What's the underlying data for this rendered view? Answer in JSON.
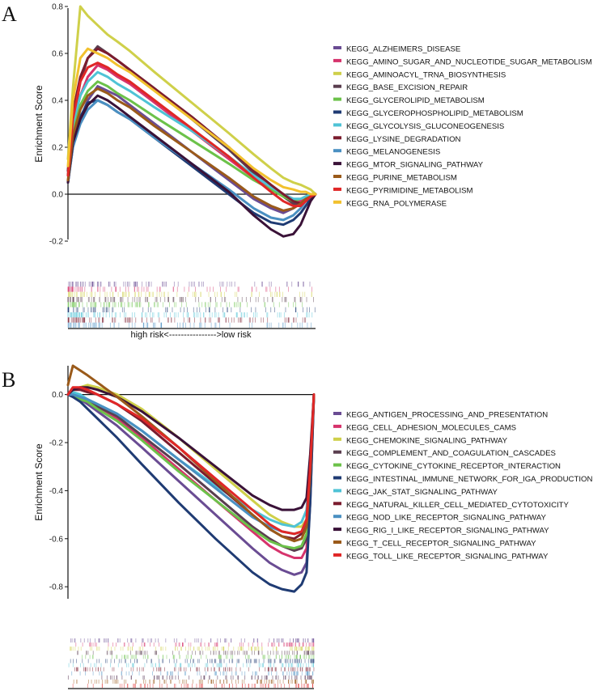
{
  "chart_data": [
    {
      "type": "line",
      "panel_label": "A",
      "ylabel": "Enrichment Score",
      "ylim": [
        -0.2,
        0.8
      ],
      "yticks": [
        -0.2,
        0.0,
        0.2,
        0.4,
        0.6,
        0.8
      ],
      "yticklabels": [
        "-0.2",
        "0.0",
        "0.2",
        "0.4",
        "0.6",
        "0.8"
      ],
      "x": [
        0,
        2,
        5,
        8,
        12,
        16,
        20,
        25,
        35,
        50,
        65,
        75,
        82,
        87,
        91,
        94,
        96,
        98,
        100
      ],
      "xlabel": "high risk<---------------->low risk",
      "legend_position": "right",
      "series": [
        {
          "name": "KEGG_ALZHEIMERS_DISEASE",
          "color": "#6a4c93",
          "values": [
            0.05,
            0.2,
            0.32,
            0.4,
            0.46,
            0.44,
            0.42,
            0.38,
            0.3,
            0.18,
            0.06,
            -0.02,
            -0.06,
            -0.08,
            -0.06,
            -0.04,
            -0.02,
            -0.01,
            0.0
          ]
        },
        {
          "name": "KEGG_AMINO_SUGAR_AND_NUCLEOTIDE_SUGAR_METABOLISM",
          "color": "#d6336c",
          "values": [
            0.1,
            0.3,
            0.42,
            0.5,
            0.55,
            0.53,
            0.5,
            0.47,
            0.39,
            0.27,
            0.15,
            0.07,
            0.02,
            0.0,
            -0.02,
            -0.03,
            -0.02,
            -0.01,
            0.0
          ]
        },
        {
          "name": "KEGG_AMINOACYL_TRNA_BIOSYNTHESIS",
          "color": "#cfd04a",
          "values": [
            0.15,
            0.45,
            0.8,
            0.76,
            0.72,
            0.68,
            0.65,
            0.61,
            0.52,
            0.39,
            0.26,
            0.17,
            0.11,
            0.07,
            0.05,
            0.04,
            0.03,
            0.02,
            0.0
          ]
        },
        {
          "name": "KEGG_BASE_EXCISION_REPAIR",
          "color": "#5a3e4f",
          "values": [
            0.08,
            0.3,
            0.48,
            0.58,
            0.63,
            0.6,
            0.57,
            0.53,
            0.45,
            0.32,
            0.19,
            0.09,
            0.03,
            -0.01,
            -0.04,
            -0.05,
            -0.03,
            -0.02,
            0.0
          ]
        },
        {
          "name": "KEGG_GLYCEROLIPID_METABOLISM",
          "color": "#6cc24a",
          "values": [
            0.1,
            0.28,
            0.38,
            0.44,
            0.48,
            0.46,
            0.43,
            0.4,
            0.33,
            0.23,
            0.13,
            0.06,
            0.02,
            -0.01,
            -0.03,
            -0.02,
            -0.01,
            0.0,
            0.0
          ]
        },
        {
          "name": "KEGG_GLYCEROPHOSPHOLIPID_METABOLISM",
          "color": "#1f3b73",
          "values": [
            0.05,
            0.22,
            0.33,
            0.39,
            0.4,
            0.38,
            0.35,
            0.32,
            0.24,
            0.12,
            0.0,
            -0.08,
            -0.12,
            -0.13,
            -0.11,
            -0.08,
            -0.05,
            -0.02,
            0.0
          ]
        },
        {
          "name": "KEGG_GLYCOLYSIS_GLUCONEOGENESIS",
          "color": "#4fc3d6",
          "values": [
            0.1,
            0.3,
            0.42,
            0.48,
            0.52,
            0.5,
            0.47,
            0.44,
            0.37,
            0.27,
            0.16,
            0.08,
            0.03,
            0.0,
            -0.02,
            -0.02,
            -0.01,
            0.0,
            0.0
          ]
        },
        {
          "name": "KEGG_LYSINE_DEGRADATION",
          "color": "#7b1c2e",
          "values": [
            0.1,
            0.35,
            0.5,
            0.58,
            0.62,
            0.6,
            0.57,
            0.53,
            0.45,
            0.33,
            0.2,
            0.1,
            0.04,
            0.0,
            -0.03,
            -0.04,
            -0.03,
            -0.01,
            0.0
          ]
        },
        {
          "name": "KEGG_MELANOGENESIS",
          "color": "#4a90c2",
          "values": [
            0.05,
            0.2,
            0.3,
            0.36,
            0.4,
            0.38,
            0.35,
            0.32,
            0.24,
            0.13,
            0.02,
            -0.06,
            -0.1,
            -0.11,
            -0.09,
            -0.06,
            -0.03,
            -0.01,
            0.0
          ]
        },
        {
          "name": "KEGG_MTOR_SIGNALING_PATHWAY",
          "color": "#3a1238",
          "values": [
            0.05,
            0.22,
            0.32,
            0.38,
            0.42,
            0.4,
            0.37,
            0.33,
            0.25,
            0.13,
            0.01,
            -0.09,
            -0.15,
            -0.18,
            -0.17,
            -0.13,
            -0.08,
            -0.03,
            0.0
          ]
        },
        {
          "name": "KEGG_PURINE_METABOLISM",
          "color": "#9a5a1a",
          "values": [
            0.06,
            0.25,
            0.36,
            0.42,
            0.45,
            0.43,
            0.4,
            0.37,
            0.29,
            0.18,
            0.07,
            -0.01,
            -0.05,
            -0.07,
            -0.06,
            -0.04,
            -0.02,
            -0.01,
            0.0
          ]
        },
        {
          "name": "KEGG_PYRIMIDINE_METABOLISM",
          "color": "#e02727",
          "values": [
            0.08,
            0.32,
            0.48,
            0.54,
            0.56,
            0.54,
            0.51,
            0.48,
            0.4,
            0.28,
            0.16,
            0.07,
            0.01,
            -0.03,
            -0.05,
            -0.05,
            -0.03,
            -0.01,
            0.0
          ]
        },
        {
          "name": "KEGG_RNA_POLYMERASE",
          "color": "#f2c12e",
          "values": [
            0.12,
            0.4,
            0.58,
            0.62,
            0.6,
            0.58,
            0.55,
            0.52,
            0.44,
            0.32,
            0.2,
            0.11,
            0.06,
            0.03,
            0.02,
            0.01,
            0.01,
            0.0,
            0.0
          ]
        }
      ]
    },
    {
      "type": "line",
      "panel_label": "B",
      "ylabel": "Enrichment Score",
      "ylim": [
        -0.85,
        0.12
      ],
      "yticks": [
        -0.8,
        -0.6,
        -0.4,
        -0.2,
        0.0
      ],
      "yticklabels": [
        "-0.8",
        "-0.6",
        "-0.4",
        "-0.2",
        "0.0"
      ],
      "x": [
        0,
        2,
        5,
        8,
        12,
        20,
        30,
        45,
        60,
        75,
        82,
        87,
        92,
        95,
        97,
        98.5,
        100
      ],
      "xlabel": "",
      "legend_position": "right",
      "series": [
        {
          "name": "KEGG_ANTIGEN_PROCESSING_AND_PRESENTATION",
          "color": "#6a4c93",
          "values": [
            0.0,
            0.0,
            -0.02,
            -0.04,
            -0.07,
            -0.13,
            -0.22,
            -0.36,
            -0.5,
            -0.64,
            -0.7,
            -0.73,
            -0.75,
            -0.74,
            -0.7,
            -0.45,
            0.0
          ]
        },
        {
          "name": "KEGG_CELL_ADHESION_MOLECULES_CAMS",
          "color": "#d6336c",
          "values": [
            0.0,
            0.01,
            -0.01,
            -0.03,
            -0.05,
            -0.1,
            -0.18,
            -0.31,
            -0.44,
            -0.57,
            -0.63,
            -0.66,
            -0.68,
            -0.68,
            -0.64,
            -0.4,
            0.0
          ]
        },
        {
          "name": "KEGG_CHEMOKINE_SIGNALING_PATHWAY",
          "color": "#cfd04a",
          "values": [
            0.0,
            0.02,
            0.03,
            0.04,
            0.03,
            0.0,
            -0.06,
            -0.18,
            -0.31,
            -0.44,
            -0.5,
            -0.53,
            -0.55,
            -0.55,
            -0.52,
            -0.32,
            0.0
          ]
        },
        {
          "name": "KEGG_COMPLEMENT_AND_COAGULATION_CASCADES",
          "color": "#5a3e4f",
          "values": [
            0.0,
            0.0,
            -0.01,
            -0.03,
            -0.05,
            -0.09,
            -0.17,
            -0.29,
            -0.42,
            -0.55,
            -0.6,
            -0.63,
            -0.65,
            -0.64,
            -0.6,
            -0.38,
            0.0
          ]
        },
        {
          "name": "KEGG_CYTOKINE_CYTOKINE_RECEPTOR_INTERACTION",
          "color": "#6cc24a",
          "values": [
            0.0,
            0.0,
            -0.02,
            -0.03,
            -0.06,
            -0.11,
            -0.19,
            -0.32,
            -0.44,
            -0.56,
            -0.61,
            -0.63,
            -0.64,
            -0.63,
            -0.58,
            -0.35,
            0.0
          ]
        },
        {
          "name": "KEGG_INTESTINAL_IMMUNE_NETWORK_FOR_IGA_PRODUCTION",
          "color": "#1f3b73",
          "values": [
            0.0,
            -0.01,
            -0.03,
            -0.06,
            -0.1,
            -0.18,
            -0.29,
            -0.45,
            -0.6,
            -0.74,
            -0.79,
            -0.81,
            -0.82,
            -0.79,
            -0.74,
            -0.45,
            0.0
          ]
        },
        {
          "name": "KEGG_JAK_STAT_SIGNALING_PATHWAY",
          "color": "#4fc3d6",
          "values": [
            0.0,
            0.01,
            0.0,
            -0.02,
            -0.04,
            -0.08,
            -0.15,
            -0.27,
            -0.38,
            -0.48,
            -0.52,
            -0.54,
            -0.55,
            -0.53,
            -0.48,
            -0.28,
            0.0
          ]
        },
        {
          "name": "KEGG_NATURAL_KILLER_CELL_MEDIATED_CYTOTOXICITY",
          "color": "#7b1c2e",
          "values": [
            0.0,
            0.02,
            0.02,
            0.01,
            0.0,
            -0.04,
            -0.11,
            -0.24,
            -0.37,
            -0.5,
            -0.56,
            -0.59,
            -0.6,
            -0.58,
            -0.52,
            -0.3,
            0.0
          ]
        },
        {
          "name": "KEGG_NOD_LIKE_RECEPTOR_SIGNALING_PATHWAY",
          "color": "#4a90c2",
          "values": [
            0.0,
            0.0,
            -0.01,
            -0.02,
            -0.04,
            -0.08,
            -0.15,
            -0.27,
            -0.39,
            -0.51,
            -0.55,
            -0.57,
            -0.58,
            -0.57,
            -0.52,
            -0.3,
            0.0
          ]
        },
        {
          "name": "KEGG_RIG_I_LIKE_RECEPTOR_SIGNALING_PATHWAY",
          "color": "#3a1238",
          "values": [
            0.0,
            0.02,
            0.03,
            0.03,
            0.02,
            -0.01,
            -0.07,
            -0.18,
            -0.3,
            -0.42,
            -0.46,
            -0.48,
            -0.48,
            -0.47,
            -0.43,
            -0.25,
            0.0
          ]
        },
        {
          "name": "KEGG_T_CELL_RECEPTOR_SIGNALING_PATHWAY",
          "color": "#9a5a1a",
          "values": [
            0.04,
            0.12,
            0.1,
            0.08,
            0.05,
            -0.01,
            -0.09,
            -0.22,
            -0.36,
            -0.5,
            -0.56,
            -0.59,
            -0.61,
            -0.6,
            -0.55,
            -0.33,
            0.0
          ]
        },
        {
          "name": "KEGG_TOLL_LIKE_RECEPTOR_SIGNALING_PATHWAY",
          "color": "#e02727",
          "values": [
            0.0,
            0.03,
            0.03,
            0.02,
            0.0,
            -0.04,
            -0.1,
            -0.22,
            -0.35,
            -0.48,
            -0.54,
            -0.57,
            -0.58,
            -0.57,
            -0.52,
            -0.3,
            0.0
          ]
        }
      ]
    }
  ]
}
